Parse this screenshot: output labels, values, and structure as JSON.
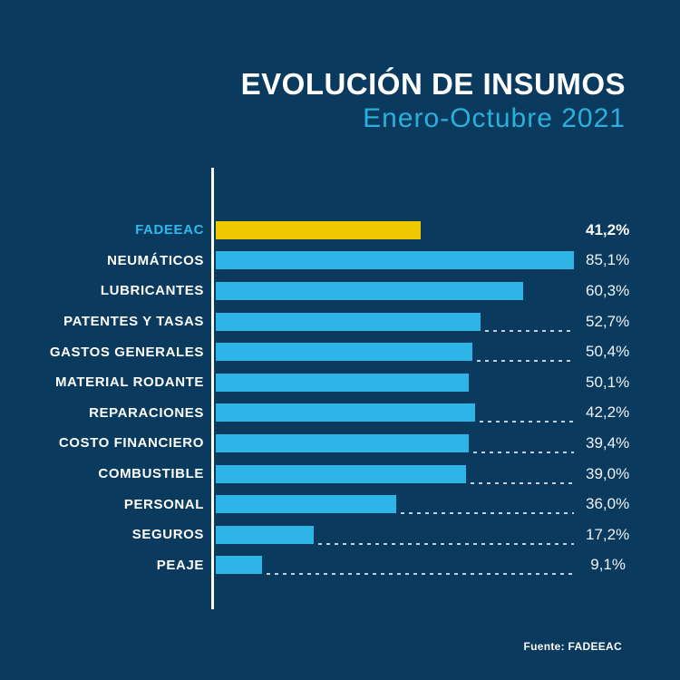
{
  "header": {
    "title": "EVOLUCIÓN DE INSUMOS",
    "subtitle": "Enero-Octubre 2021"
  },
  "footer": {
    "source_label": "Fuente: FADEEAC"
  },
  "colors": {
    "background": "#0a3a5e",
    "bar": "#2cb5e6",
    "highlight_bar": "#efc900",
    "title_text": "#ffffff",
    "subtitle_text": "#2bb0de",
    "highlight_label_text": "#2fb9ea",
    "axis_line": "#ffffff",
    "dotted_leader": "rgba(226,235,242,0.85)"
  },
  "chart_data": {
    "type": "bar",
    "orientation": "horizontal",
    "title": "EVOLUCIÓN DE INSUMOS",
    "subtitle": "Enero-Octubre 2021",
    "source": "Fuente: FADEEAC",
    "categories": [
      "FADEEAC",
      "NEUMÁTICOS",
      "LUBRICANTES",
      "PATENTES Y TASAS",
      "GASTOS GENERALES",
      "MATERIAL RODANTE",
      "REPARACIONES",
      "COSTO FINANCIERO",
      "COMBUSTIBLE",
      "PERSONAL",
      "SEGUROS",
      "PEAJE"
    ],
    "values": [
      41.2,
      85.1,
      60.3,
      52.7,
      50.4,
      50.1,
      42.2,
      39.4,
      39.0,
      36.0,
      17.2,
      9.1
    ],
    "value_labels": [
      "41,2%",
      "85,1%",
      "60,3%",
      "52,7%",
      "50,4%",
      "50,1%",
      "42,2%",
      "39,4%",
      "39,0%",
      "36,0%",
      "17,2%",
      "9,1%"
    ],
    "unit": "%",
    "xlim": [
      0,
      85.1
    ],
    "highlight_index": 0,
    "dotted_leader": [
      false,
      false,
      false,
      true,
      true,
      false,
      true,
      true,
      true,
      true,
      true,
      true
    ],
    "drawn_fraction": [
      0.572,
      1.0,
      0.858,
      0.74,
      0.716,
      0.706,
      0.725,
      0.706,
      0.699,
      0.503,
      0.273,
      0.129
    ],
    "grid": false,
    "legend": false,
    "value_label_position": "right"
  }
}
